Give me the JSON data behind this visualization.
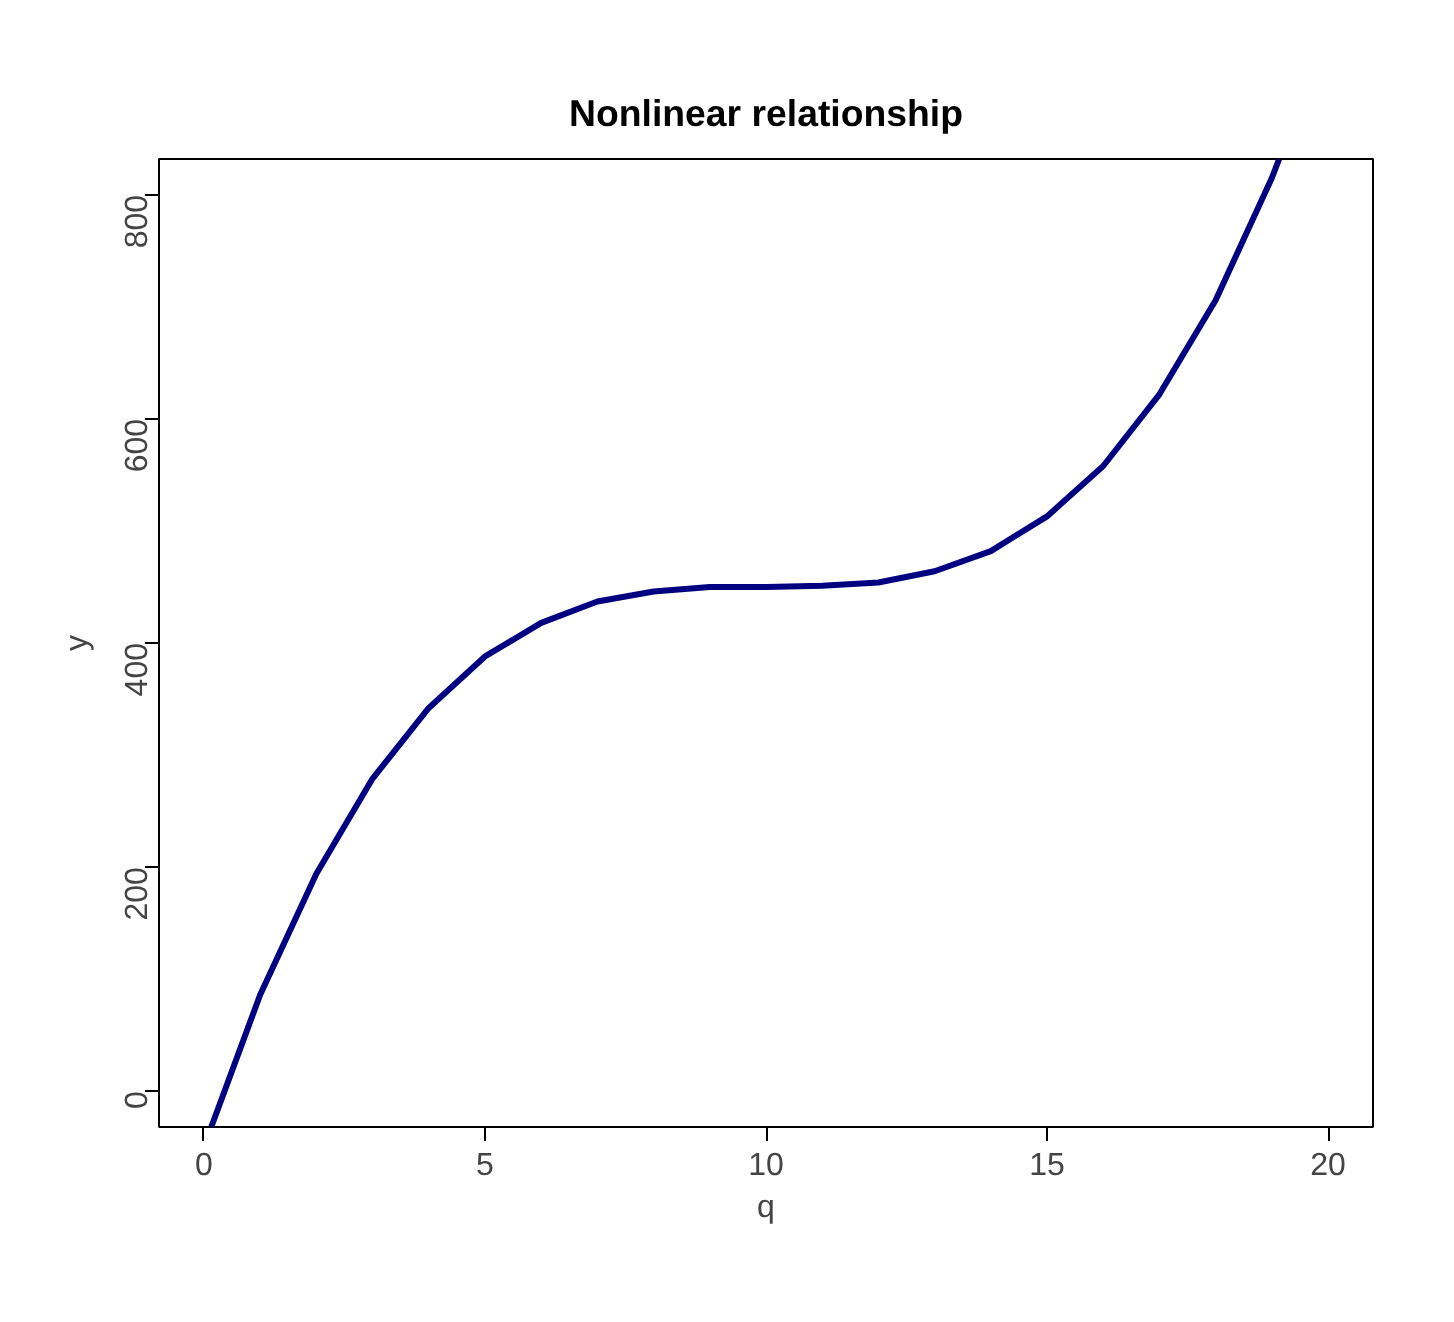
{
  "chart_data": {
    "type": "line",
    "title": "Nonlinear relationship",
    "xlabel": "q",
    "ylabel": "y",
    "x": [
      0.13,
      1,
      2,
      3,
      4,
      5,
      6,
      7,
      8,
      9,
      10,
      11,
      12,
      13,
      14,
      15,
      16,
      17,
      18,
      19,
      19.13
    ],
    "series": [
      {
        "color": "#000080",
        "values": [
          -32,
          86,
          194,
          279,
          342,
          388,
          418,
          437,
          446,
          450,
          450,
          451,
          454,
          464,
          482,
          513,
          558,
          622,
          706,
          815,
          832
        ]
      }
    ],
    "xlim": [
      -0.8,
      20.8
    ],
    "ylim": [
      -32,
      832
    ],
    "xticks": [
      0,
      5,
      10,
      15,
      20
    ],
    "yticks": [
      0,
      200,
      400,
      600,
      800
    ],
    "grid": false,
    "marker": "none",
    "line_style": "solid"
  }
}
